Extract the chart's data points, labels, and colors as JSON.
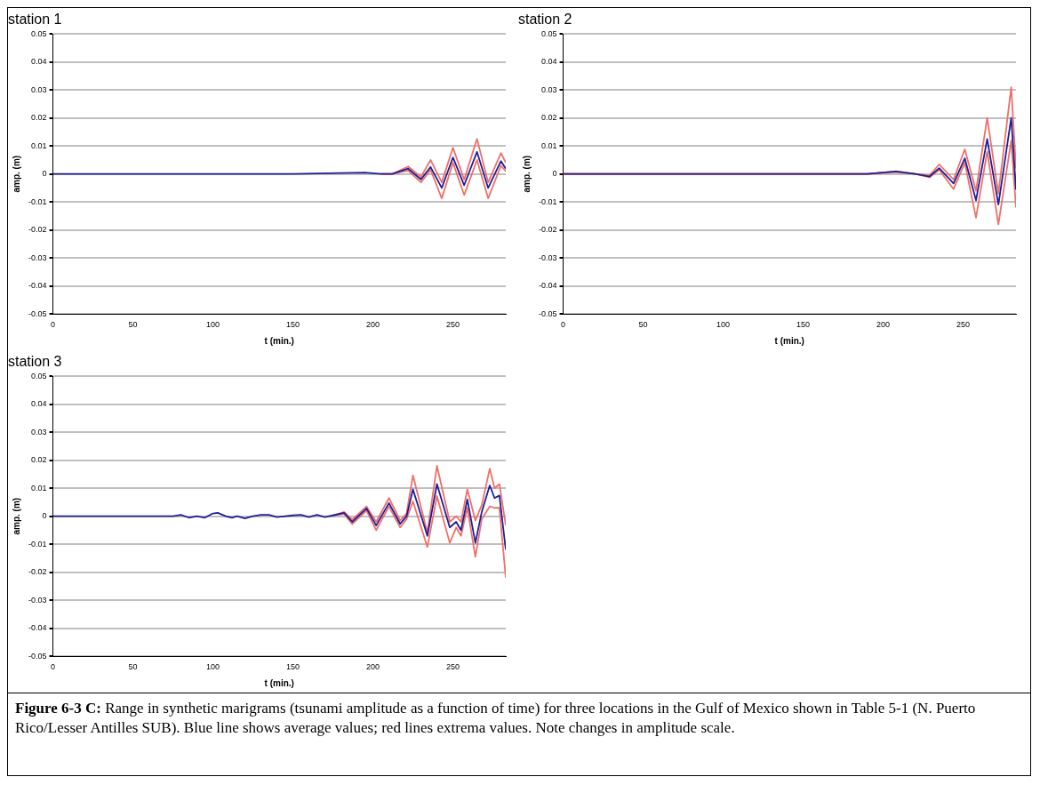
{
  "chart_data": [
    {
      "type": "line",
      "title": "station 1",
      "xlabel": "t (min.)",
      "ylabel": "amp. (m)",
      "xlim": [
        0,
        283
      ],
      "xticks": [
        0,
        50,
        100,
        150,
        200,
        250
      ],
      "ylim": [
        -0.05,
        0.05
      ],
      "yticks": [
        -0.05,
        -0.04,
        -0.03,
        -0.02,
        -0.01,
        0,
        0.01,
        0.02,
        0.03,
        0.04,
        0.05
      ],
      "grid": "y",
      "legend": false,
      "marker": "none",
      "series": [
        {
          "color": "#ef6f6a",
          "x": [
            205,
            212,
            222,
            230,
            236,
            243,
            250,
            257,
            265,
            272,
            280,
            283
          ],
          "values": [
            0,
            0,
            0.0027,
            -0.001,
            0.005,
            -0.003,
            0.0094,
            -0.002,
            0.0125,
            -0.003,
            0.0075,
            0.004
          ]
        },
        {
          "color": "#ef6f6a",
          "x": [
            205,
            212,
            222,
            230,
            236,
            243,
            250,
            257,
            265,
            272,
            280,
            283
          ],
          "values": [
            0,
            0,
            0.0012,
            -0.003,
            0.0015,
            -0.0087,
            0.004,
            -0.0075,
            0.005,
            -0.0087,
            0.003,
            0.001
          ]
        },
        {
          "color": "#1f1f96",
          "x": [
            0,
            150,
            195,
            205,
            212,
            222,
            230,
            236,
            243,
            250,
            257,
            265,
            272,
            280,
            283
          ],
          "values": [
            0,
            0,
            0.0005,
            0,
            0,
            0.0019,
            -0.0019,
            0.0025,
            -0.005,
            0.0059,
            -0.004,
            0.0079,
            -0.005,
            0.0046,
            0.0019
          ]
        }
      ]
    },
    {
      "type": "line",
      "title": "station 2",
      "xlabel": "t (min.)",
      "ylabel": "amp. (m)",
      "xlim": [
        0,
        283
      ],
      "xticks": [
        0,
        50,
        100,
        150,
        200,
        250
      ],
      "ylim": [
        -0.05,
        0.05
      ],
      "yticks": [
        -0.05,
        -0.04,
        -0.03,
        -0.02,
        -0.01,
        0,
        0.01,
        0.02,
        0.03,
        0.04,
        0.05
      ],
      "grid": "y",
      "legend": false,
      "marker": "none",
      "series": [
        {
          "color": "#ef6f6a",
          "x": [
            0,
            190,
            208,
            220,
            229,
            235,
            244,
            251,
            258,
            265,
            272,
            280,
            283
          ],
          "values": [
            0,
            0,
            0.001,
            0,
            -0.0005,
            0.0034,
            -0.002,
            0.0088,
            -0.006,
            0.02,
            -0.007,
            0.031,
            0.002
          ]
        },
        {
          "color": "#ef6f6a",
          "x": [
            0,
            190,
            208,
            220,
            229,
            235,
            244,
            251,
            258,
            265,
            272,
            280,
            283
          ],
          "values": [
            0,
            0,
            0.0007,
            0,
            -0.0012,
            0.0015,
            -0.0054,
            0.004,
            -0.0156,
            0.008,
            -0.018,
            0.0119,
            -0.012
          ]
        },
        {
          "color": "#1f1f96",
          "x": [
            0,
            190,
            208,
            220,
            229,
            235,
            244,
            251,
            258,
            265,
            272,
            280,
            283
          ],
          "values": [
            0,
            0,
            0.0009,
            0,
            -0.0009,
            0.0021,
            -0.0034,
            0.0056,
            -0.0094,
            0.0125,
            -0.0109,
            0.02,
            -0.0056
          ]
        }
      ]
    },
    {
      "type": "line",
      "title": "station 3",
      "xlabel": "t (min.)",
      "ylabel": "amp. (m)",
      "xlim": [
        0,
        283
      ],
      "xticks": [
        0,
        50,
        100,
        150,
        200,
        250
      ],
      "ylim": [
        -0.05,
        0.05
      ],
      "yticks": [
        -0.05,
        -0.04,
        -0.03,
        -0.02,
        -0.01,
        0,
        0.01,
        0.02,
        0.03,
        0.04,
        0.05
      ],
      "grid": "y",
      "legend": false,
      "marker": "none",
      "annotations": [
        "Figure 6-3 C:",
        "Range in synthetic marigrams (tsunami amplitude as a function of time) for three locations in the Gulf of Mexico shown in Table 5-1 (N. Puerto Rico/Lesser Antilles SUB).  Blue line shows average values; red lines extrema values. Note changes in amplitude scale."
      ],
      "series": [
        {
          "color": "#ef6f6a",
          "x": [
            175,
            182,
            187,
            196,
            202,
            210,
            217,
            221,
            225,
            234,
            240,
            248,
            252,
            255,
            259,
            264,
            268,
            273,
            276,
            279,
            283
          ],
          "values": [
            0.0003,
            0.0015,
            -0.0012,
            0.0035,
            -0.002,
            0.0065,
            -0.0015,
            0.001,
            0.0146,
            -0.0058,
            0.018,
            -0.002,
            0,
            -0.002,
            0.0096,
            -0.0015,
            0.004,
            0.017,
            0.01,
            0.0115,
            -0.0033
          ]
        },
        {
          "color": "#ef6f6a",
          "x": [
            175,
            182,
            187,
            196,
            202,
            210,
            217,
            221,
            225,
            234,
            240,
            248,
            252,
            255,
            259,
            264,
            268,
            273,
            276,
            279,
            283
          ],
          "values": [
            0.0003,
            0.0008,
            -0.0028,
            0.002,
            -0.005,
            0.0035,
            -0.004,
            -0.001,
            0.0053,
            -0.011,
            0.0072,
            -0.0095,
            -0.004,
            -0.007,
            0.003,
            -0.0145,
            -0.001,
            0.0035,
            0.003,
            0.003,
            -0.022
          ]
        },
        {
          "color": "#1f1f96",
          "x": [
            0,
            75,
            80,
            85,
            90,
            95,
            100,
            103,
            108,
            112,
            115,
            120,
            125,
            130,
            135,
            140,
            150,
            155,
            160,
            165,
            170,
            175,
            182,
            187,
            196,
            202,
            210,
            217,
            221,
            225,
            234,
            240,
            248,
            252,
            255,
            259,
            264,
            268,
            273,
            276,
            279,
            283
          ],
          "values": [
            0,
            0,
            0.0005,
            -0.0005,
            0,
            -0.0005,
            0.001,
            0.0012,
            0,
            -0.0005,
            0,
            -0.0008,
            0,
            0.0005,
            0.0005,
            -0.0003,
            0.0003,
            0.0005,
            -0.0003,
            0.0005,
            -0.0003,
            0.0003,
            0.0012,
            -0.002,
            0.0028,
            -0.0033,
            0.0047,
            -0.0027,
            0,
            0.0096,
            -0.007,
            0.0115,
            -0.004,
            -0.002,
            -0.005,
            0.006,
            -0.0095,
            0.0016,
            0.011,
            0.0065,
            0.0074,
            -0.012
          ]
        }
      ]
    }
  ]
}
